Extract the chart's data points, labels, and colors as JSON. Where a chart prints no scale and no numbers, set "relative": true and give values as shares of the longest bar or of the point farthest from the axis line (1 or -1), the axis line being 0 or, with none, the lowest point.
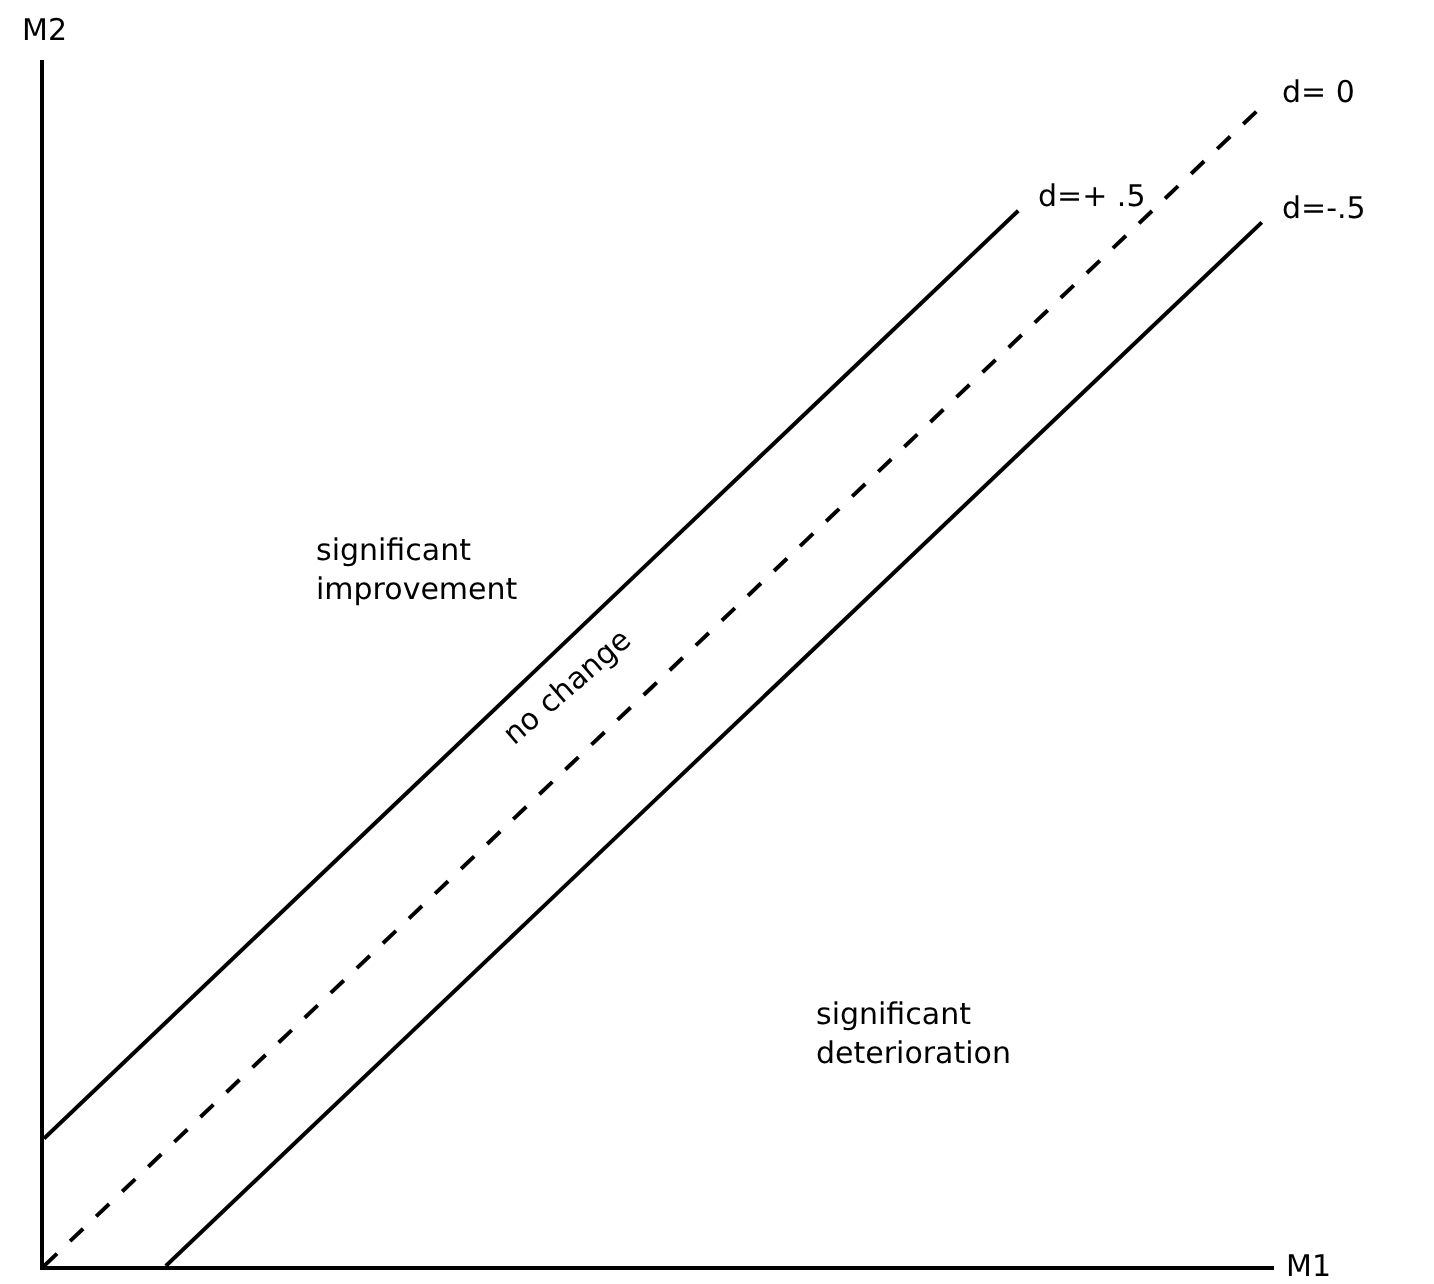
{
  "chart_data": {
    "type": "line",
    "relative": true,
    "xlabel": "M1",
    "ylabel": "M2",
    "categories": [
      null,
      null,
      null,
      null,
      null,
      null,
      null,
      null,
      null,
      null,
      null
    ],
    "series": [
      {
        "name": "d=+ .5",
        "color": "#000000",
        "line_style": "solid",
        "values": [
          0.11,
          0.21,
          0.31,
          0.41,
          0.51,
          0.61,
          0.71,
          0.81,
          0.91,
          null,
          null
        ]
      },
      {
        "name": "d= 0",
        "color": "#000000",
        "line_style": "dashed",
        "values": [
          0,
          0.1,
          0.2,
          0.3,
          0.4,
          0.5,
          0.6,
          0.7,
          0.8,
          0.9,
          1.0
        ]
      },
      {
        "name": "d=-.5",
        "color": "#000000",
        "line_style": "solid",
        "values": [
          null,
          0,
          0.1,
          0.2,
          0.3,
          0.4,
          0.5,
          0.6,
          0.7,
          0.8,
          0.9
        ]
      }
    ],
    "annotations": [
      "significant improvement",
      "no change",
      "significant deterioration"
    ],
    "legend": false,
    "grid": false,
    "marker": "none"
  }
}
